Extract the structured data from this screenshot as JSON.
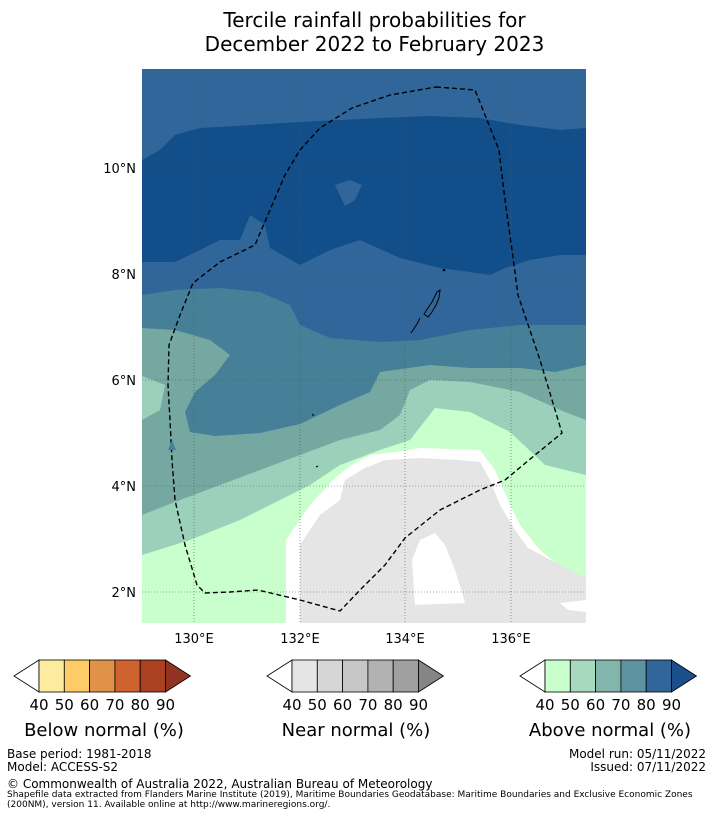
{
  "title_line1": "Tercile rainfall probabilities for",
  "title_line2": "December 2022 to February 2023",
  "map": {
    "lon_range": [
      129.0,
      137.4
    ],
    "lat_range": [
      1.4,
      11.9
    ],
    "lat_ticks": [
      "10°N",
      "8°N",
      "6°N",
      "4°N",
      "2°N"
    ],
    "lon_ticks": [
      "130°E",
      "132°E",
      "134°E",
      "136°E"
    ],
    "gridlines": true,
    "colors": {
      "above_90": "#124e8a",
      "above_80": "#31669a",
      "above_70": "#467f98",
      "above_60": "#76a8a2",
      "above_50": "#9bd1ba",
      "above_40": "#c9ffcc",
      "near_40": "#e5e5e5",
      "white": "#ffffff"
    }
  },
  "colorbars": {
    "below": {
      "label": "Below normal (%)",
      "ticks": [
        "40",
        "50",
        "60",
        "70",
        "80",
        "90"
      ],
      "colors": [
        "#ffffff",
        "#feeda0",
        "#ffcb66",
        "#e19249",
        "#d0622f",
        "#ab4121",
        "#923322"
      ]
    },
    "near": {
      "label": "Near normal (%)",
      "ticks": [
        "40",
        "50",
        "60",
        "70",
        "80",
        "90"
      ],
      "colors": [
        "#ffffff",
        "#e5e5e5",
        "#d6d6d6",
        "#c7c7c7",
        "#b2b2b2",
        "#a0a0a0",
        "#858585"
      ]
    },
    "above": {
      "label": "Above normal (%)",
      "ticks": [
        "40",
        "50",
        "60",
        "70",
        "80",
        "90"
      ],
      "colors": [
        "#ffffff",
        "#c9ffcc",
        "#a6d9bd",
        "#82b6ac",
        "#5d92a0",
        "#31669a",
        "#1a4f89"
      ]
    }
  },
  "meta": {
    "base_period": "Base period: 1981-2018",
    "model": "Model: ACCESS-S2",
    "model_run": "Model run: 05/11/2022",
    "issued": "Issued: 07/11/2022",
    "copyright": "© Commonwealth of Australia 2022, Australian Bureau of Meteorology",
    "shapefile_line1": "Shapefile data extracted from Flanders Marine Institute (2019), Maritime Boundaries Geodatabase: Maritime Boundaries and Exclusive Economic Zones",
    "shapefile_line2": "(200NM), version 11. Available online at http://www.marineregions.org/."
  }
}
